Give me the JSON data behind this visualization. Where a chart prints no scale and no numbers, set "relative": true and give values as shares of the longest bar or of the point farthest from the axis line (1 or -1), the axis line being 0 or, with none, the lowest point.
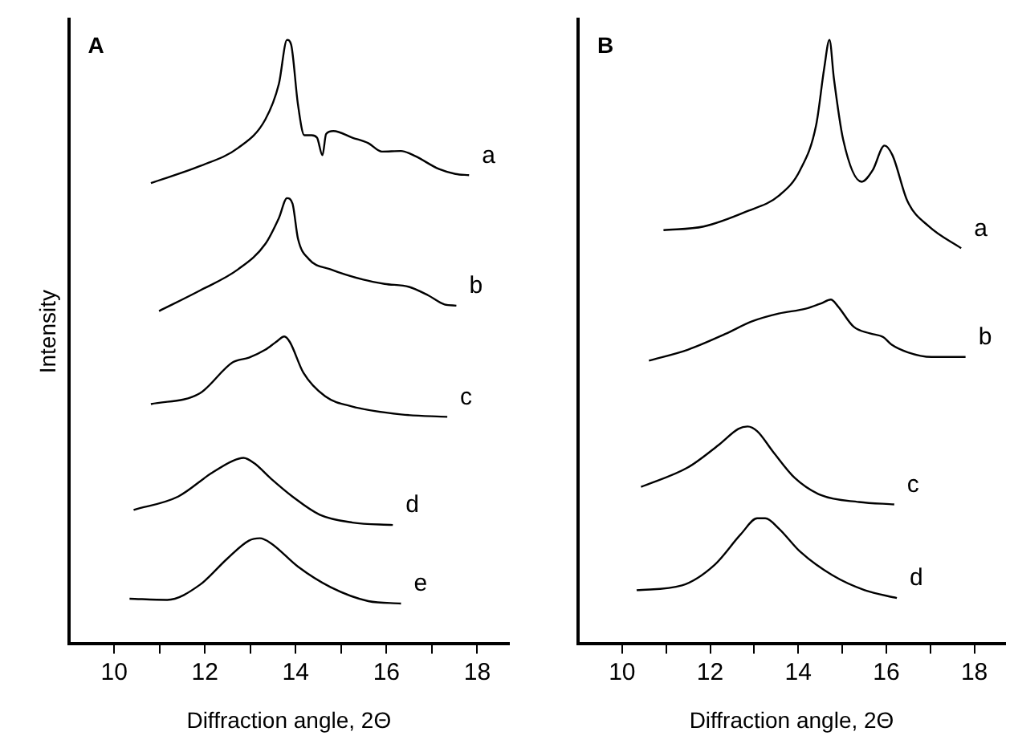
{
  "chart_data": [
    {
      "type": "line",
      "title": "A",
      "xlabel": "Diffraction angle, 2Θ",
      "ylabel": "Intensity",
      "relative": true,
      "grid": false,
      "marker": "none",
      "line_style": "solid",
      "xlim": [
        9,
        18.7
      ],
      "xticks": [
        10,
        {
          "value": 11,
          "label": null
        },
        12,
        {
          "value": 13,
          "label": null
        },
        14,
        {
          "value": 15,
          "label": null
        },
        16,
        {
          "value": 17,
          "label": null
        },
        18
      ],
      "series": [
        {
          "name": "a",
          "color": "#000000",
          "x": [
            10.81,
            11.89,
            12.73,
            13.33,
            13.63,
            13.81,
            13.9,
            14.05,
            14.19,
            14.35,
            14.47,
            14.59,
            14.67,
            14.83,
            15.25,
            15.6,
            15.9,
            16.32,
            16.62,
            17.16,
            17.52,
            17.82
          ],
          "values": [
            0.763,
            0.791,
            0.821,
            0.868,
            0.927,
            1.0,
            0.992,
            0.893,
            0.842,
            0.842,
            0.838,
            0.809,
            0.844,
            0.849,
            0.838,
            0.829,
            0.815,
            0.816,
            0.808,
            0.786,
            0.778,
            0.776
          ]
        },
        {
          "name": "b",
          "color": "#000000",
          "x": [
            10.99,
            11.89,
            12.73,
            13.33,
            13.63,
            13.81,
            13.93,
            14.05,
            14.29,
            14.77,
            15.49,
            15.96,
            16.5,
            16.92,
            17.28,
            17.54
          ],
          "values": [
            0.551,
            0.585,
            0.62,
            0.662,
            0.705,
            0.738,
            0.729,
            0.671,
            0.637,
            0.62,
            0.603,
            0.596,
            0.591,
            0.577,
            0.562,
            0.56
          ]
        },
        {
          "name": "c",
          "color": "#000000",
          "x": [
            10.81,
            11.89,
            12.61,
            12.97,
            13.33,
            13.57,
            13.75,
            13.87,
            14.17,
            14.65,
            15.25,
            16.32,
            17.34
          ],
          "values": [
            0.397,
            0.415,
            0.466,
            0.474,
            0.487,
            0.5,
            0.509,
            0.5,
            0.449,
            0.41,
            0.393,
            0.38,
            0.376
          ]
        },
        {
          "name": "d",
          "color": "#000000",
          "x": [
            10.43,
            11.41,
            12.13,
            12.61,
            12.85,
            13.09,
            13.45,
            13.93,
            14.53,
            15.25,
            16.14
          ],
          "values": [
            0.222,
            0.244,
            0.282,
            0.303,
            0.308,
            0.299,
            0.274,
            0.244,
            0.214,
            0.201,
            0.197
          ]
        },
        {
          "name": "e",
          "color": "#000000",
          "x": [
            10.34,
            11.17,
            11.89,
            12.49,
            12.97,
            13.21,
            13.45,
            14.05,
            14.77,
            15.6,
            16.32
          ],
          "values": [
            0.075,
            0.073,
            0.098,
            0.141,
            0.171,
            0.175,
            0.167,
            0.128,
            0.094,
            0.071,
            0.067
          ]
        }
      ]
    },
    {
      "type": "line",
      "title": "B",
      "xlabel": "Diffraction angle, 2Θ",
      "relative": true,
      "grid": false,
      "marker": "none",
      "line_style": "solid",
      "xlim": [
        9,
        18.7
      ],
      "xticks": [
        10,
        {
          "value": 11,
          "label": null
        },
        12,
        {
          "value": 13,
          "label": null
        },
        14,
        {
          "value": 15,
          "label": null
        },
        16,
        {
          "value": 17,
          "label": null
        },
        18
      ],
      "series": [
        {
          "name": "a",
          "color": "#000000",
          "x": [
            10.94,
            11.85,
            12.83,
            13.56,
            14.04,
            14.41,
            14.59,
            14.71,
            14.81,
            15.02,
            15.44,
            15.69,
            15.96,
            16.14,
            16.48,
            16.97,
            17.7
          ],
          "values": [
            0.685,
            0.691,
            0.716,
            0.742,
            0.784,
            0.86,
            0.953,
            1.0,
            0.936,
            0.835,
            0.765,
            0.784,
            0.825,
            0.809,
            0.733,
            0.691,
            0.655
          ]
        },
        {
          "name": "b",
          "color": "#000000",
          "x": [
            10.61,
            11.49,
            12.34,
            12.95,
            13.56,
            14.17,
            14.53,
            14.74,
            14.9,
            15.26,
            15.63,
            15.93,
            16.11,
            16.48,
            17.03,
            17.8
          ],
          "values": [
            0.469,
            0.487,
            0.513,
            0.534,
            0.547,
            0.555,
            0.564,
            0.57,
            0.559,
            0.525,
            0.514,
            0.508,
            0.496,
            0.483,
            0.475,
            0.475
          ]
        },
        {
          "name": "c",
          "color": "#000000",
          "x": [
            10.43,
            11.49,
            12.22,
            12.64,
            12.85,
            13.07,
            13.43,
            13.92,
            14.53,
            15.38,
            16.18
          ],
          "values": [
            0.26,
            0.292,
            0.331,
            0.356,
            0.36,
            0.352,
            0.318,
            0.275,
            0.246,
            0.235,
            0.231
          ]
        },
        {
          "name": "d",
          "color": "#000000",
          "x": [
            10.33,
            11.36,
            12.1,
            12.7,
            13.07,
            13.25,
            13.56,
            14.04,
            14.77,
            15.51,
            16.24
          ],
          "values": [
            0.089,
            0.097,
            0.131,
            0.182,
            0.208,
            0.208,
            0.191,
            0.153,
            0.114,
            0.089,
            0.076
          ]
        }
      ]
    }
  ]
}
